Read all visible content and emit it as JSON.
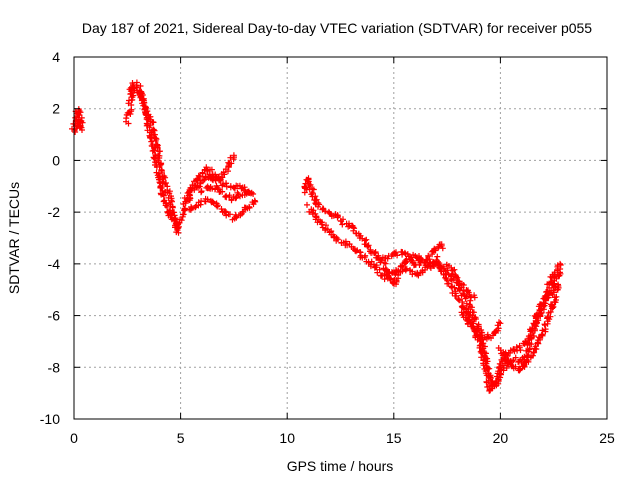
{
  "chart_data": {
    "type": "scatter",
    "title": "Day 187 of 2021, Sidereal Day-to-day VTEC variation (SDTVAR) for receiver p055",
    "xlabel": "GPS time / hours",
    "ylabel": "SDTVAR / TECUs",
    "xlim": [
      0,
      25
    ],
    "ylim": [
      -10,
      4
    ],
    "xticks": [
      0,
      5,
      10,
      15,
      20,
      25
    ],
    "yticks": [
      -10,
      -8,
      -6,
      -4,
      -2,
      0,
      2,
      4
    ],
    "grid": true,
    "marker": "plus",
    "color": "#ff0000",
    "series": [
      {
        "segments": [
          [
            [
              0.0,
              1.3
            ],
            [
              0.1,
              1.8
            ],
            [
              0.2,
              2.0
            ],
            [
              0.3,
              1.6
            ],
            [
              0.35,
              1.2
            ],
            [
              0.2,
              1.5
            ],
            [
              0.05,
              1.1
            ]
          ],
          [
            [
              2.5,
              1.5
            ],
            [
              2.7,
              2.4
            ],
            [
              2.8,
              3.0
            ],
            [
              3.0,
              2.9
            ],
            [
              3.2,
              2.4
            ],
            [
              3.4,
              1.6
            ],
            [
              3.6,
              1.0
            ],
            [
              3.8,
              0.2
            ],
            [
              4.0,
              -0.8
            ],
            [
              4.2,
              -1.6
            ],
            [
              4.5,
              -2.1
            ],
            [
              4.8,
              -2.6
            ],
            [
              5.0,
              -2.4
            ],
            [
              5.2,
              -1.6
            ],
            [
              5.5,
              -1.2
            ],
            [
              6.0,
              -0.8
            ],
            [
              6.5,
              -0.6
            ],
            [
              7.0,
              -0.9
            ],
            [
              7.5,
              -1.0
            ],
            [
              8.0,
              -1.1
            ],
            [
              8.4,
              -1.3
            ]
          ],
          [
            [
              2.6,
              2.8
            ],
            [
              3.0,
              2.7
            ],
            [
              3.3,
              2.2
            ],
            [
              3.6,
              1.5
            ],
            [
              3.9,
              0.5
            ],
            [
              4.2,
              -0.7
            ],
            [
              4.5,
              -1.5
            ],
            [
              4.7,
              -2.2
            ],
            [
              4.9,
              -2.8
            ]
          ],
          [
            [
              5.3,
              -1.6
            ],
            [
              5.6,
              -1.0
            ],
            [
              5.9,
              -0.5
            ],
            [
              6.3,
              -0.3
            ],
            [
              6.6,
              -0.8
            ],
            [
              7.0,
              -0.6
            ],
            [
              7.3,
              -0.2
            ],
            [
              7.5,
              0.2
            ]
          ],
          [
            [
              5.4,
              -2.0
            ],
            [
              5.8,
              -1.7
            ],
            [
              6.2,
              -1.5
            ],
            [
              6.6,
              -1.6
            ],
            [
              7.0,
              -2.0
            ],
            [
              7.4,
              -2.2
            ],
            [
              7.8,
              -2.1
            ],
            [
              8.2,
              -1.8
            ],
            [
              8.5,
              -1.6
            ]
          ],
          [
            [
              6.0,
              -1.2
            ],
            [
              6.5,
              -1.0
            ],
            [
              7.0,
              -1.3
            ],
            [
              7.4,
              -1.5
            ],
            [
              7.8,
              -1.3
            ],
            [
              8.2,
              -1.2
            ]
          ],
          [
            [
              10.8,
              -1.2
            ],
            [
              11.0,
              -0.7
            ],
            [
              11.2,
              -1.3
            ],
            [
              11.5,
              -1.8
            ],
            [
              12.0,
              -2.0
            ],
            [
              12.5,
              -2.3
            ],
            [
              13.0,
              -2.6
            ],
            [
              13.5,
              -3.0
            ],
            [
              14.0,
              -3.5
            ],
            [
              14.5,
              -4.0
            ],
            [
              14.8,
              -4.5
            ],
            [
              15.0,
              -4.8
            ],
            [
              15.3,
              -4.2
            ],
            [
              15.6,
              -3.8
            ],
            [
              16.0,
              -3.7
            ],
            [
              16.5,
              -4.0
            ],
            [
              17.0,
              -4.0
            ],
            [
              17.5,
              -4.3
            ],
            [
              18.0,
              -4.8
            ],
            [
              18.5,
              -5.5
            ],
            [
              19.0,
              -6.5
            ],
            [
              19.3,
              -7.5
            ],
            [
              19.5,
              -8.3
            ],
            [
              19.7,
              -8.7
            ],
            [
              20.0,
              -8.3
            ],
            [
              20.3,
              -7.8
            ],
            [
              20.7,
              -7.7
            ],
            [
              21.0,
              -7.8
            ],
            [
              21.3,
              -7.3
            ],
            [
              21.6,
              -6.5
            ],
            [
              21.9,
              -5.8
            ],
            [
              22.2,
              -5.3
            ],
            [
              22.5,
              -4.8
            ],
            [
              22.8,
              -4.2
            ]
          ],
          [
            [
              11.0,
              -1.8
            ],
            [
              11.5,
              -2.4
            ],
            [
              12.0,
              -2.8
            ],
            [
              12.5,
              -3.1
            ],
            [
              13.0,
              -3.3
            ],
            [
              13.5,
              -3.7
            ],
            [
              14.0,
              -4.0
            ],
            [
              14.5,
              -4.5
            ],
            [
              15.0,
              -4.3
            ],
            [
              15.5,
              -4.2
            ],
            [
              16.0,
              -4.4
            ],
            [
              16.5,
              -4.2
            ],
            [
              17.0,
              -3.8
            ],
            [
              17.5,
              -4.6
            ],
            [
              18.0,
              -5.3
            ],
            [
              18.5,
              -6.0
            ],
            [
              19.0,
              -7.0
            ],
            [
              19.3,
              -8.0
            ],
            [
              19.5,
              -8.9
            ],
            [
              19.8,
              -8.5
            ],
            [
              20.2,
              -7.5
            ],
            [
              20.6,
              -7.4
            ],
            [
              21.0,
              -7.2
            ],
            [
              21.4,
              -6.8
            ],
            [
              21.7,
              -6.0
            ],
            [
              22.0,
              -5.5
            ],
            [
              22.4,
              -4.6
            ],
            [
              22.8,
              -4.0
            ]
          ],
          [
            [
              14.5,
              -3.8
            ],
            [
              15.0,
              -3.6
            ],
            [
              15.5,
              -3.6
            ],
            [
              16.0,
              -4.0
            ],
            [
              16.5,
              -3.8
            ],
            [
              16.8,
              -3.6
            ],
            [
              17.1,
              -3.2
            ],
            [
              17.3,
              -3.4
            ]
          ],
          [
            [
              17.5,
              -4.0
            ],
            [
              18.0,
              -4.6
            ],
            [
              18.5,
              -5.2
            ],
            [
              18.8,
              -5.3
            ]
          ],
          [
            [
              18.2,
              -5.8
            ],
            [
              18.6,
              -6.4
            ],
            [
              19.0,
              -6.8
            ],
            [
              19.4,
              -6.9
            ],
            [
              19.8,
              -6.6
            ],
            [
              20.0,
              -6.3
            ]
          ],
          [
            [
              20.0,
              -7.3
            ],
            [
              20.4,
              -7.8
            ],
            [
              20.8,
              -8.1
            ],
            [
              21.1,
              -8.0
            ],
            [
              21.4,
              -7.6
            ],
            [
              21.8,
              -7.0
            ],
            [
              22.2,
              -6.2
            ],
            [
              22.5,
              -5.4
            ],
            [
              22.7,
              -4.8
            ]
          ]
        ]
      }
    ]
  }
}
